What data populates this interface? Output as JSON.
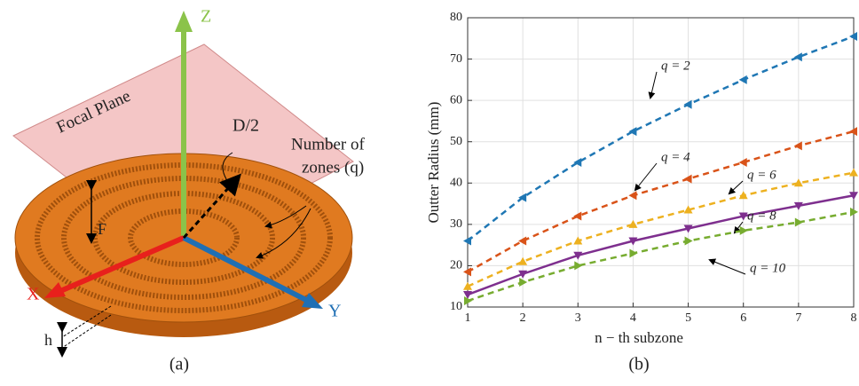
{
  "diagram": {
    "z_label": "Z",
    "plane_label": "Focal Plane",
    "d_label": "D/2",
    "zones_label": [
      "Number of",
      "zones (q)"
    ],
    "f_label": "F",
    "x_label": "X",
    "y_label": "Y",
    "h_label": "h",
    "caption": "(a)"
  },
  "chart_data": {
    "type": "line",
    "caption": "(b)",
    "x_label": "n − th subzone",
    "y_label": "Outter Radius (mm)",
    "x": [
      1,
      2,
      3,
      4,
      5,
      6,
      7,
      8
    ],
    "xlim": [
      1,
      8
    ],
    "xticks": [
      1,
      2,
      3,
      4,
      5,
      6,
      7,
      8
    ],
    "ylim": [
      10,
      80
    ],
    "yticks": [
      10,
      20,
      30,
      40,
      50,
      60,
      70,
      80
    ],
    "grid": true,
    "series": [
      {
        "name": "q = 2",
        "color": "#1f77b4",
        "dash": "dashed",
        "marker": "left",
        "values": [
          26,
          36.5,
          45,
          52.5,
          59,
          65,
          70.5,
          75.5
        ]
      },
      {
        "name": "q = 4",
        "color": "#d95319",
        "dash": "dashed",
        "marker": "left",
        "values": [
          18.5,
          26,
          32,
          37,
          41,
          45,
          49,
          52.5
        ]
      },
      {
        "name": "q = 6",
        "color": "#edb120",
        "dash": "dashed",
        "marker": "up",
        "values": [
          15,
          21,
          26,
          30,
          33.5,
          37,
          40,
          42.5
        ]
      },
      {
        "name": "q = 8",
        "color": "#7e2f8e",
        "dash": "solid",
        "marker": "down",
        "values": [
          13,
          18,
          22.5,
          26,
          29,
          32,
          34.5,
          37
        ]
      },
      {
        "name": "q = 10",
        "color": "#77ac30",
        "dash": "dashed",
        "marker": "right",
        "values": [
          11.5,
          16,
          20,
          23,
          26,
          28.5,
          30.5,
          33
        ]
      }
    ]
  }
}
